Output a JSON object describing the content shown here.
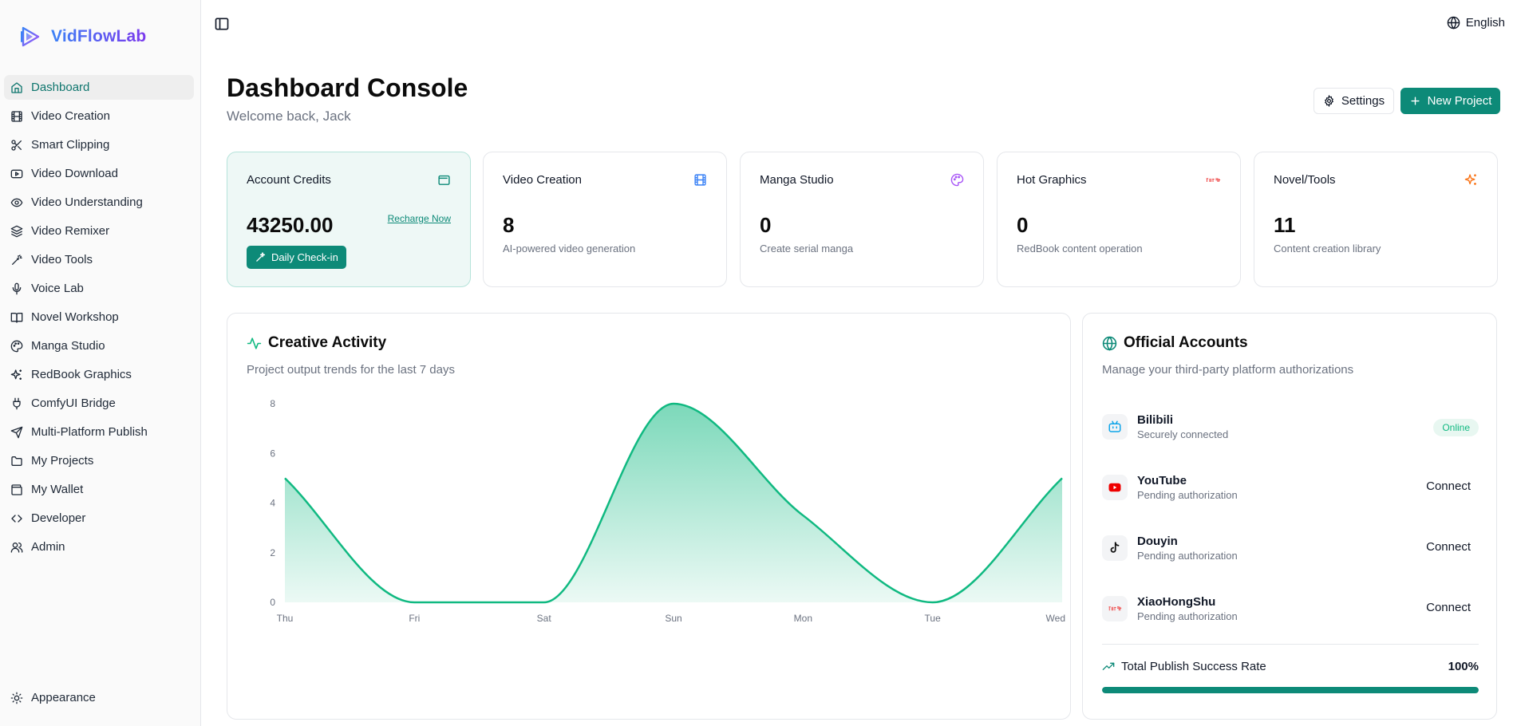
{
  "brand": {
    "name": "VidFlowLab"
  },
  "sidebar": {
    "items": [
      {
        "label": "Dashboard",
        "icon": "home-icon",
        "active": true
      },
      {
        "label": "Video Creation",
        "icon": "film-icon"
      },
      {
        "label": "Smart Clipping",
        "icon": "scissors-icon"
      },
      {
        "label": "Video Download",
        "icon": "play-square-icon"
      },
      {
        "label": "Video Understanding",
        "icon": "eye-icon"
      },
      {
        "label": "Video Remixer",
        "icon": "layers-icon"
      },
      {
        "label": "Video Tools",
        "icon": "magic-wand-icon"
      },
      {
        "label": "Voice Lab",
        "icon": "mic-icon"
      },
      {
        "label": "Novel Workshop",
        "icon": "book-open-icon"
      },
      {
        "label": "Manga Studio",
        "icon": "palette-icon"
      },
      {
        "label": "RedBook Graphics",
        "icon": "sparkles-icon"
      },
      {
        "label": "ComfyUI Bridge",
        "icon": "plug-icon"
      },
      {
        "label": "Multi-Platform Publish",
        "icon": "send-icon"
      },
      {
        "label": "My Projects",
        "icon": "folder-icon"
      },
      {
        "label": "My Wallet",
        "icon": "wallet-icon"
      },
      {
        "label": "Developer",
        "icon": "code-icon"
      },
      {
        "label": "Admin",
        "icon": "users-icon"
      }
    ],
    "appearance_label": "Appearance"
  },
  "topbar": {
    "language": "English"
  },
  "header": {
    "title": "Dashboard Console",
    "welcome": "Welcome back, Jack",
    "settings_label": "Settings",
    "new_project_label": "New Project"
  },
  "cards": {
    "credits": {
      "title": "Account Credits",
      "value": "43250.00",
      "recharge": "Recharge Now",
      "checkin": "Daily Check-in"
    },
    "video": {
      "title": "Video Creation",
      "value": "8",
      "sub": "AI-powered video generation"
    },
    "manga": {
      "title": "Manga Studio",
      "value": "0",
      "sub": "Create serial manga"
    },
    "hot": {
      "title": "Hot Graphics",
      "value": "0",
      "sub": "RedBook content operation"
    },
    "novel": {
      "title": "Novel/Tools",
      "value": "11",
      "sub": "Content creation library"
    }
  },
  "activity": {
    "title": "Creative Activity",
    "subtitle": "Project output trends for the last 7 days"
  },
  "chart_data": {
    "type": "area",
    "categories": [
      "Thu",
      "Fri",
      "Sat",
      "Sun",
      "Mon",
      "Tue",
      "Wed"
    ],
    "values": [
      5,
      0,
      0,
      8,
      3.5,
      0,
      5
    ],
    "yticks": [
      0,
      2,
      4,
      6,
      8
    ],
    "ylim": [
      0,
      8
    ],
    "title": "",
    "xlabel": "",
    "ylabel": "",
    "color": "#10b981"
  },
  "accounts": {
    "title": "Official Accounts",
    "subtitle": "Manage your third-party platform authorizations",
    "items": [
      {
        "name": "Bilibili",
        "status": "Securely connected",
        "action": "Online",
        "icon": "bilibili-icon"
      },
      {
        "name": "YouTube",
        "status": "Pending authorization",
        "action": "Connect",
        "icon": "youtube-icon"
      },
      {
        "name": "Douyin",
        "status": "Pending authorization",
        "action": "Connect",
        "icon": "tiktok-icon"
      },
      {
        "name": "XiaoHongShu",
        "status": "Pending authorization",
        "action": "Connect",
        "icon": "xiaohongshu-icon"
      }
    ],
    "rate_label": "Total Publish Success Rate",
    "rate_value": "100%",
    "rate_fraction": 1.0
  },
  "colors": {
    "accent": "#0d8a78",
    "brand_start": "#3b82f6",
    "brand_end": "#7c3aed",
    "chart": "#10b981"
  }
}
